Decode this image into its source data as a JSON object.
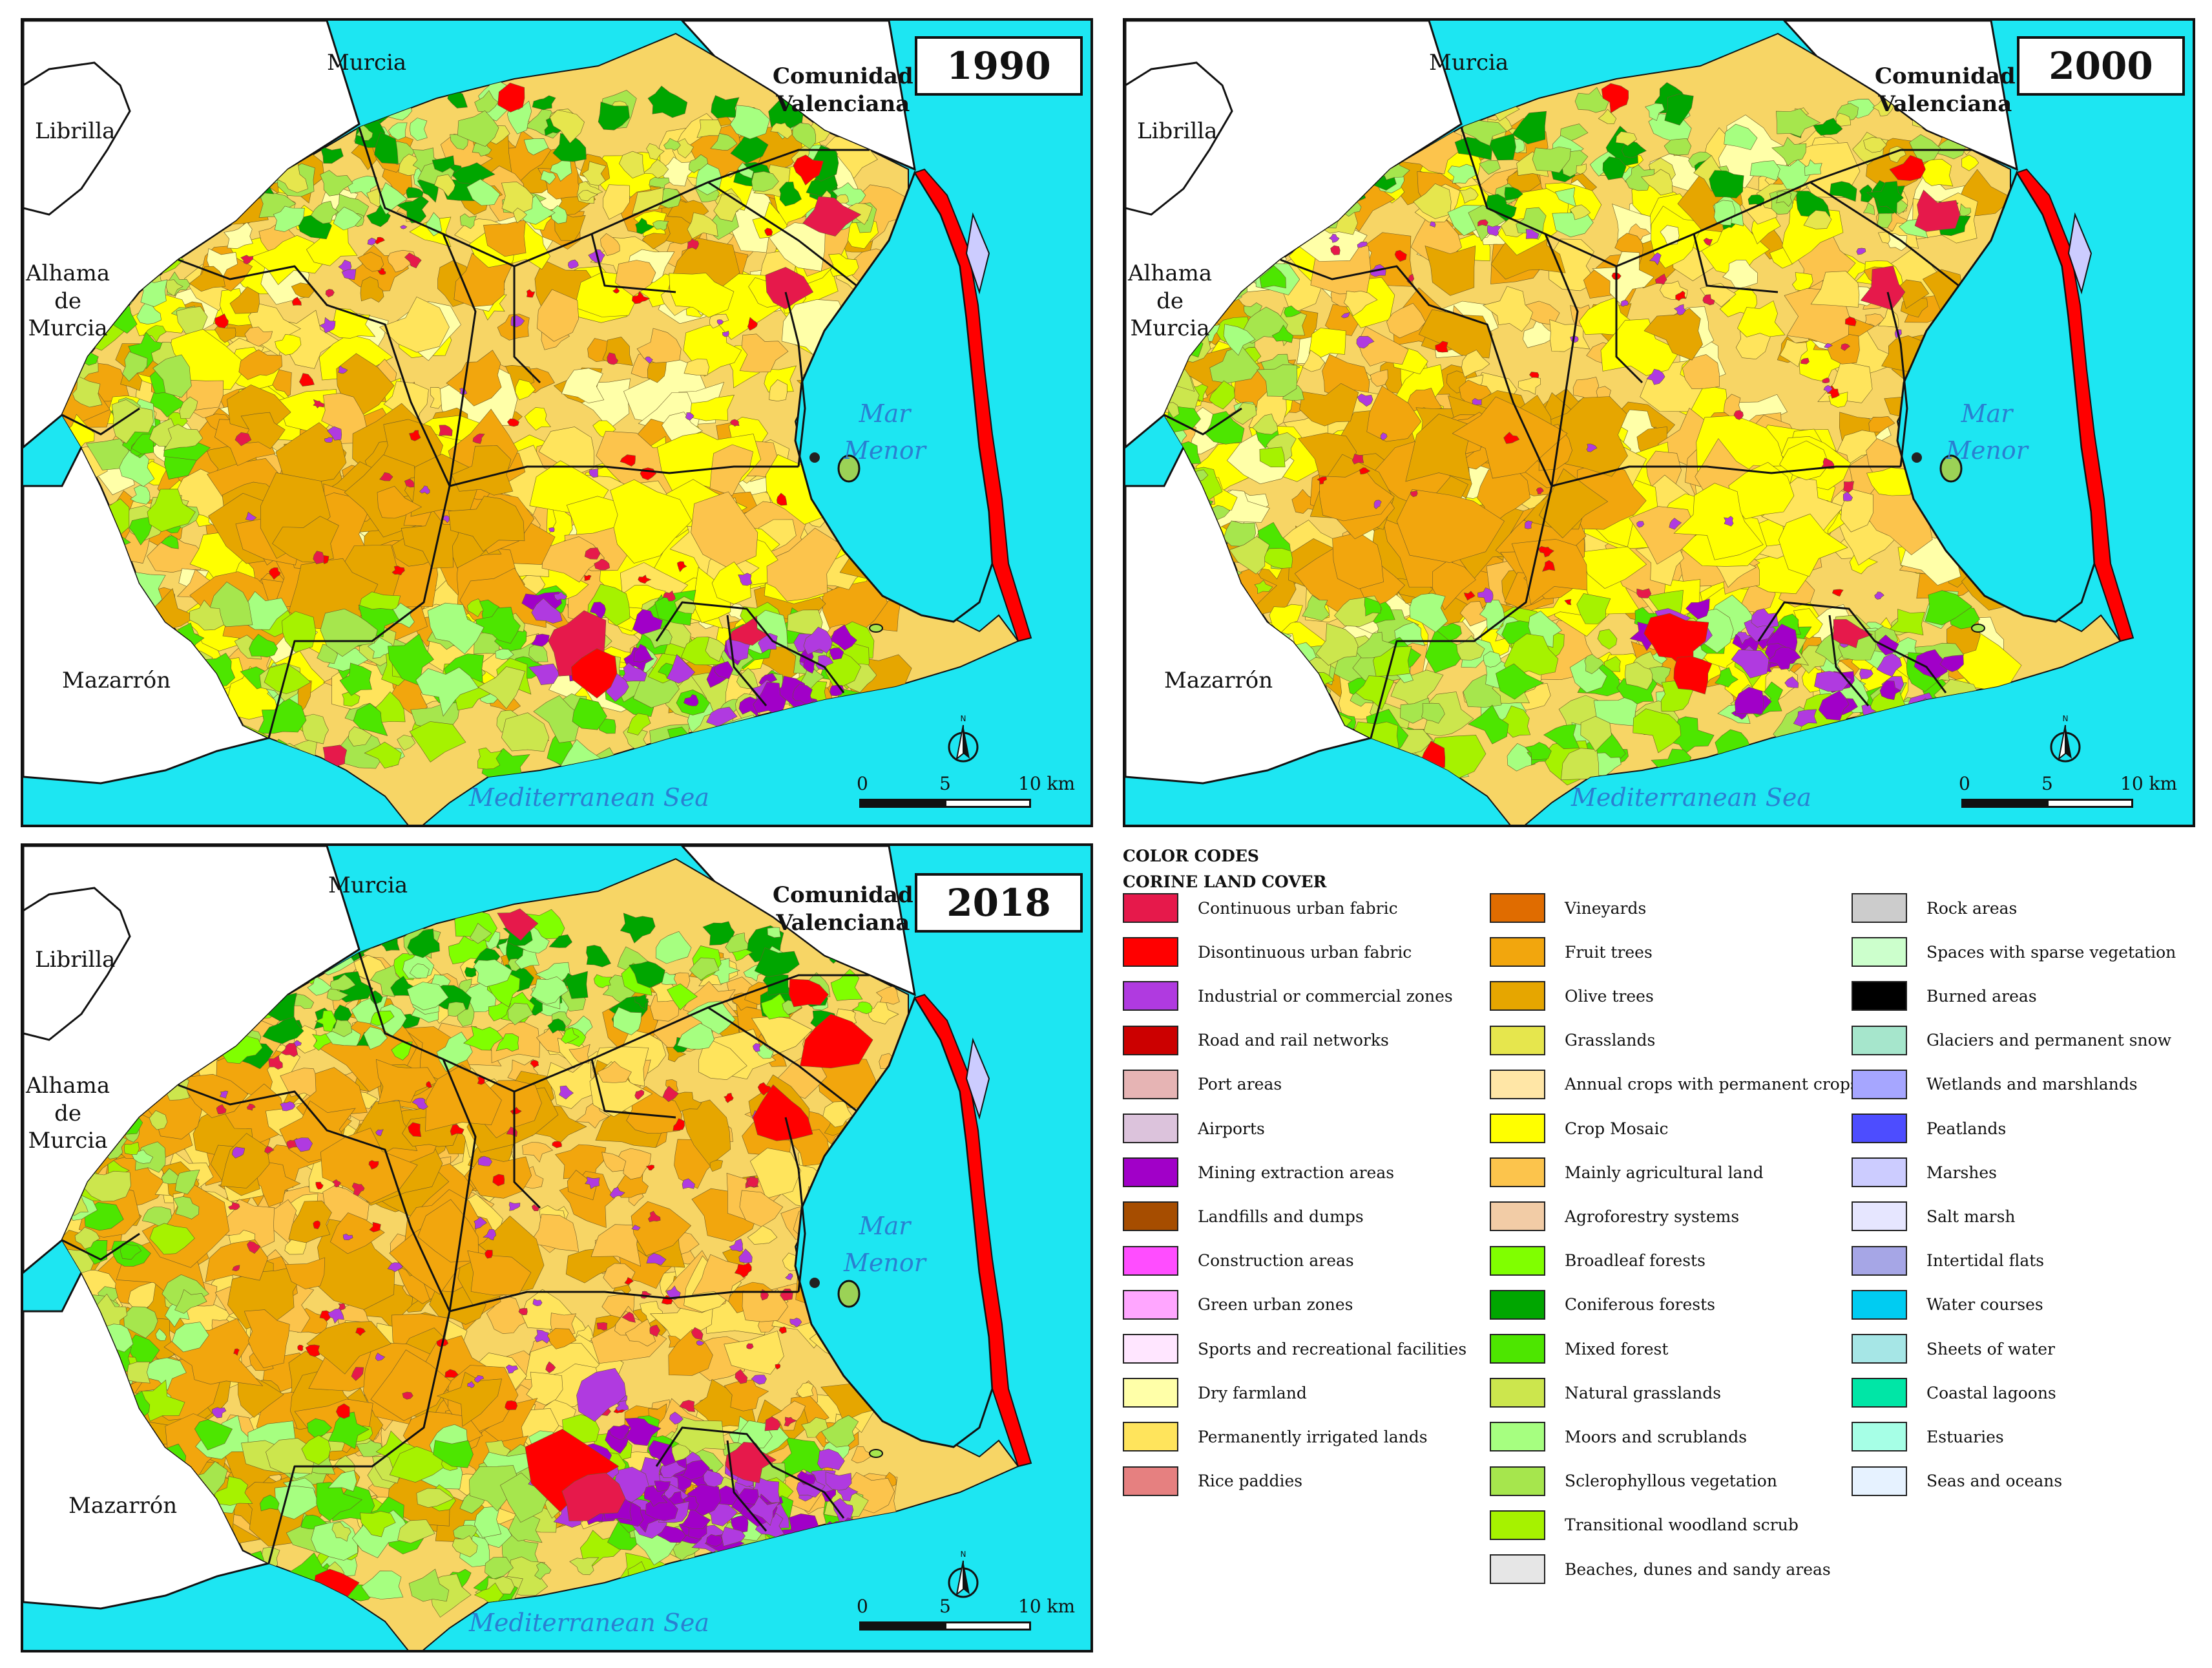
{
  "maps": [
    {
      "year": "1990",
      "labels": {
        "murcia": "Murcia",
        "librilla": "Librilla",
        "alhama": "Alhama\nde\nMurcia",
        "mazarron": "Mazarrón",
        "comunidad": "Comunidad\nValenciana",
        "mediterranean": "Mediterranean Sea",
        "mar_menor": "Mar\nMenor"
      },
      "scale": {
        "t0": "0",
        "t5": "5",
        "t10": "10 km"
      }
    },
    {
      "year": "2000",
      "labels": {
        "murcia": "Murcia",
        "librilla": "Librilla",
        "alhama": "Alhama\nde\nMurcia",
        "mazarron": "Mazarrón",
        "comunidad": "Comunidad\nValenciana",
        "mediterranean": "Mediterranean Sea",
        "mar_menor": "Mar\nMenor"
      },
      "scale": {
        "t0": "0",
        "t5": "5",
        "t10": "10 km"
      }
    },
    {
      "year": "2018",
      "labels": {
        "murcia": "Murcia",
        "librilla": "Librilla",
        "alhama": "Alhama\nde\nMurcia",
        "mazarron": "Mazarrón",
        "comunidad": "Comunidad\nValenciana",
        "mediterranean": "Mediterranean Sea",
        "mar_menor": "Mar\nMenor"
      },
      "scale": {
        "t0": "0",
        "t5": "5",
        "t10": "10 km"
      }
    }
  ],
  "legend": {
    "title_line1": "COLOR CODES",
    "title_line2": "CORINE LAND COVER",
    "columns": [
      [
        {
          "label": "Continuous urban fabric",
          "color": "#e6194b"
        },
        {
          "label": "Disontinuous urban fabric",
          "color": "#ff0000"
        },
        {
          "label": "Industrial or commercial zones",
          "color": "#b03ae0"
        },
        {
          "label": "Road and rail networks",
          "color": "#cc0000"
        },
        {
          "label": "Port areas",
          "color": "#e6b4b4"
        },
        {
          "label": "Airports",
          "color": "#dcc3dc"
        },
        {
          "label": "Mining extraction areas",
          "color": "#a100c8"
        },
        {
          "label": "Landfills and dumps",
          "color": "#a64d00"
        },
        {
          "label": "Construction areas",
          "color": "#ff4dff"
        },
        {
          "label": "Green urban zones",
          "color": "#ffa6ff"
        },
        {
          "label": "Sports and recreational facilities",
          "color": "#ffe6ff"
        },
        {
          "label": "Dry farmland",
          "color": "#ffffa8"
        },
        {
          "label": "Permanently irrigated lands",
          "color": "#ffe45c"
        },
        {
          "label": "Rice paddies",
          "color": "#e68080"
        }
      ],
      [
        {
          "label": "Vineyards",
          "color": "#e06c00"
        },
        {
          "label": "Fruit trees",
          "color": "#f2a60d"
        },
        {
          "label": "Olive trees",
          "color": "#e6a600"
        },
        {
          "label": "Grasslands",
          "color": "#e6e64d"
        },
        {
          "label": "Annual crops  with permanent crops",
          "color": "#ffe6a6"
        },
        {
          "label": "Crop Mosaic",
          "color": "#ffff00"
        },
        {
          "label": "Mainly agricultural land",
          "color": "#fcc44c"
        },
        {
          "label": "Agroforestry systems",
          "color": "#f2cca6"
        },
        {
          "label": "Broadleaf forests",
          "color": "#80ff00"
        },
        {
          "label": "Coniferous forests",
          "color": "#00a600"
        },
        {
          "label": "Mixed forest",
          "color": "#4de600"
        },
        {
          "label": "Natural grasslands",
          "color": "#cce64d"
        },
        {
          "label": "Moors and scrublands",
          "color": "#a6ff80"
        },
        {
          "label": "Sclerophyllous vegetation",
          "color": "#a6e64d"
        },
        {
          "label": "Transitional woodland scrub",
          "color": "#a6f200"
        },
        {
          "label": "Beaches, dunes and sandy areas",
          "color": "#e6e6e6"
        }
      ],
      [
        {
          "label": "Rock areas",
          "color": "#cccccc"
        },
        {
          "label": "Spaces with sparse vegetation",
          "color": "#ccffcc"
        },
        {
          "label": "Burned areas",
          "color": "#000000"
        },
        {
          "label": "Glaciers and permanent snow",
          "color": "#a6e6cc"
        },
        {
          "label": "Wetlands and marshlands",
          "color": "#a6a6ff"
        },
        {
          "label": "Peatlands",
          "color": "#4d4dff"
        },
        {
          "label": "Marshes",
          "color": "#ccccff"
        },
        {
          "label": "Salt marsh",
          "color": "#e6e6ff"
        },
        {
          "label": "Intertidal flats",
          "color": "#a6a6e6"
        },
        {
          "label": "Water courses",
          "color": "#00ccf2"
        },
        {
          "label": "Sheets of water",
          "color": "#a6e6e6"
        },
        {
          "label": "Coastal lagoons",
          "color": "#00e6a6"
        },
        {
          "label": "Estuaries",
          "color": "#a6ffe6"
        },
        {
          "label": "Seas and oceans",
          "color": "#e6f2ff"
        }
      ]
    ]
  },
  "map_colors": {
    "sea": "#1de6f2",
    "outside": "#ffffff",
    "base": "#f7d565",
    "lagoon_island": "#9bd256"
  }
}
